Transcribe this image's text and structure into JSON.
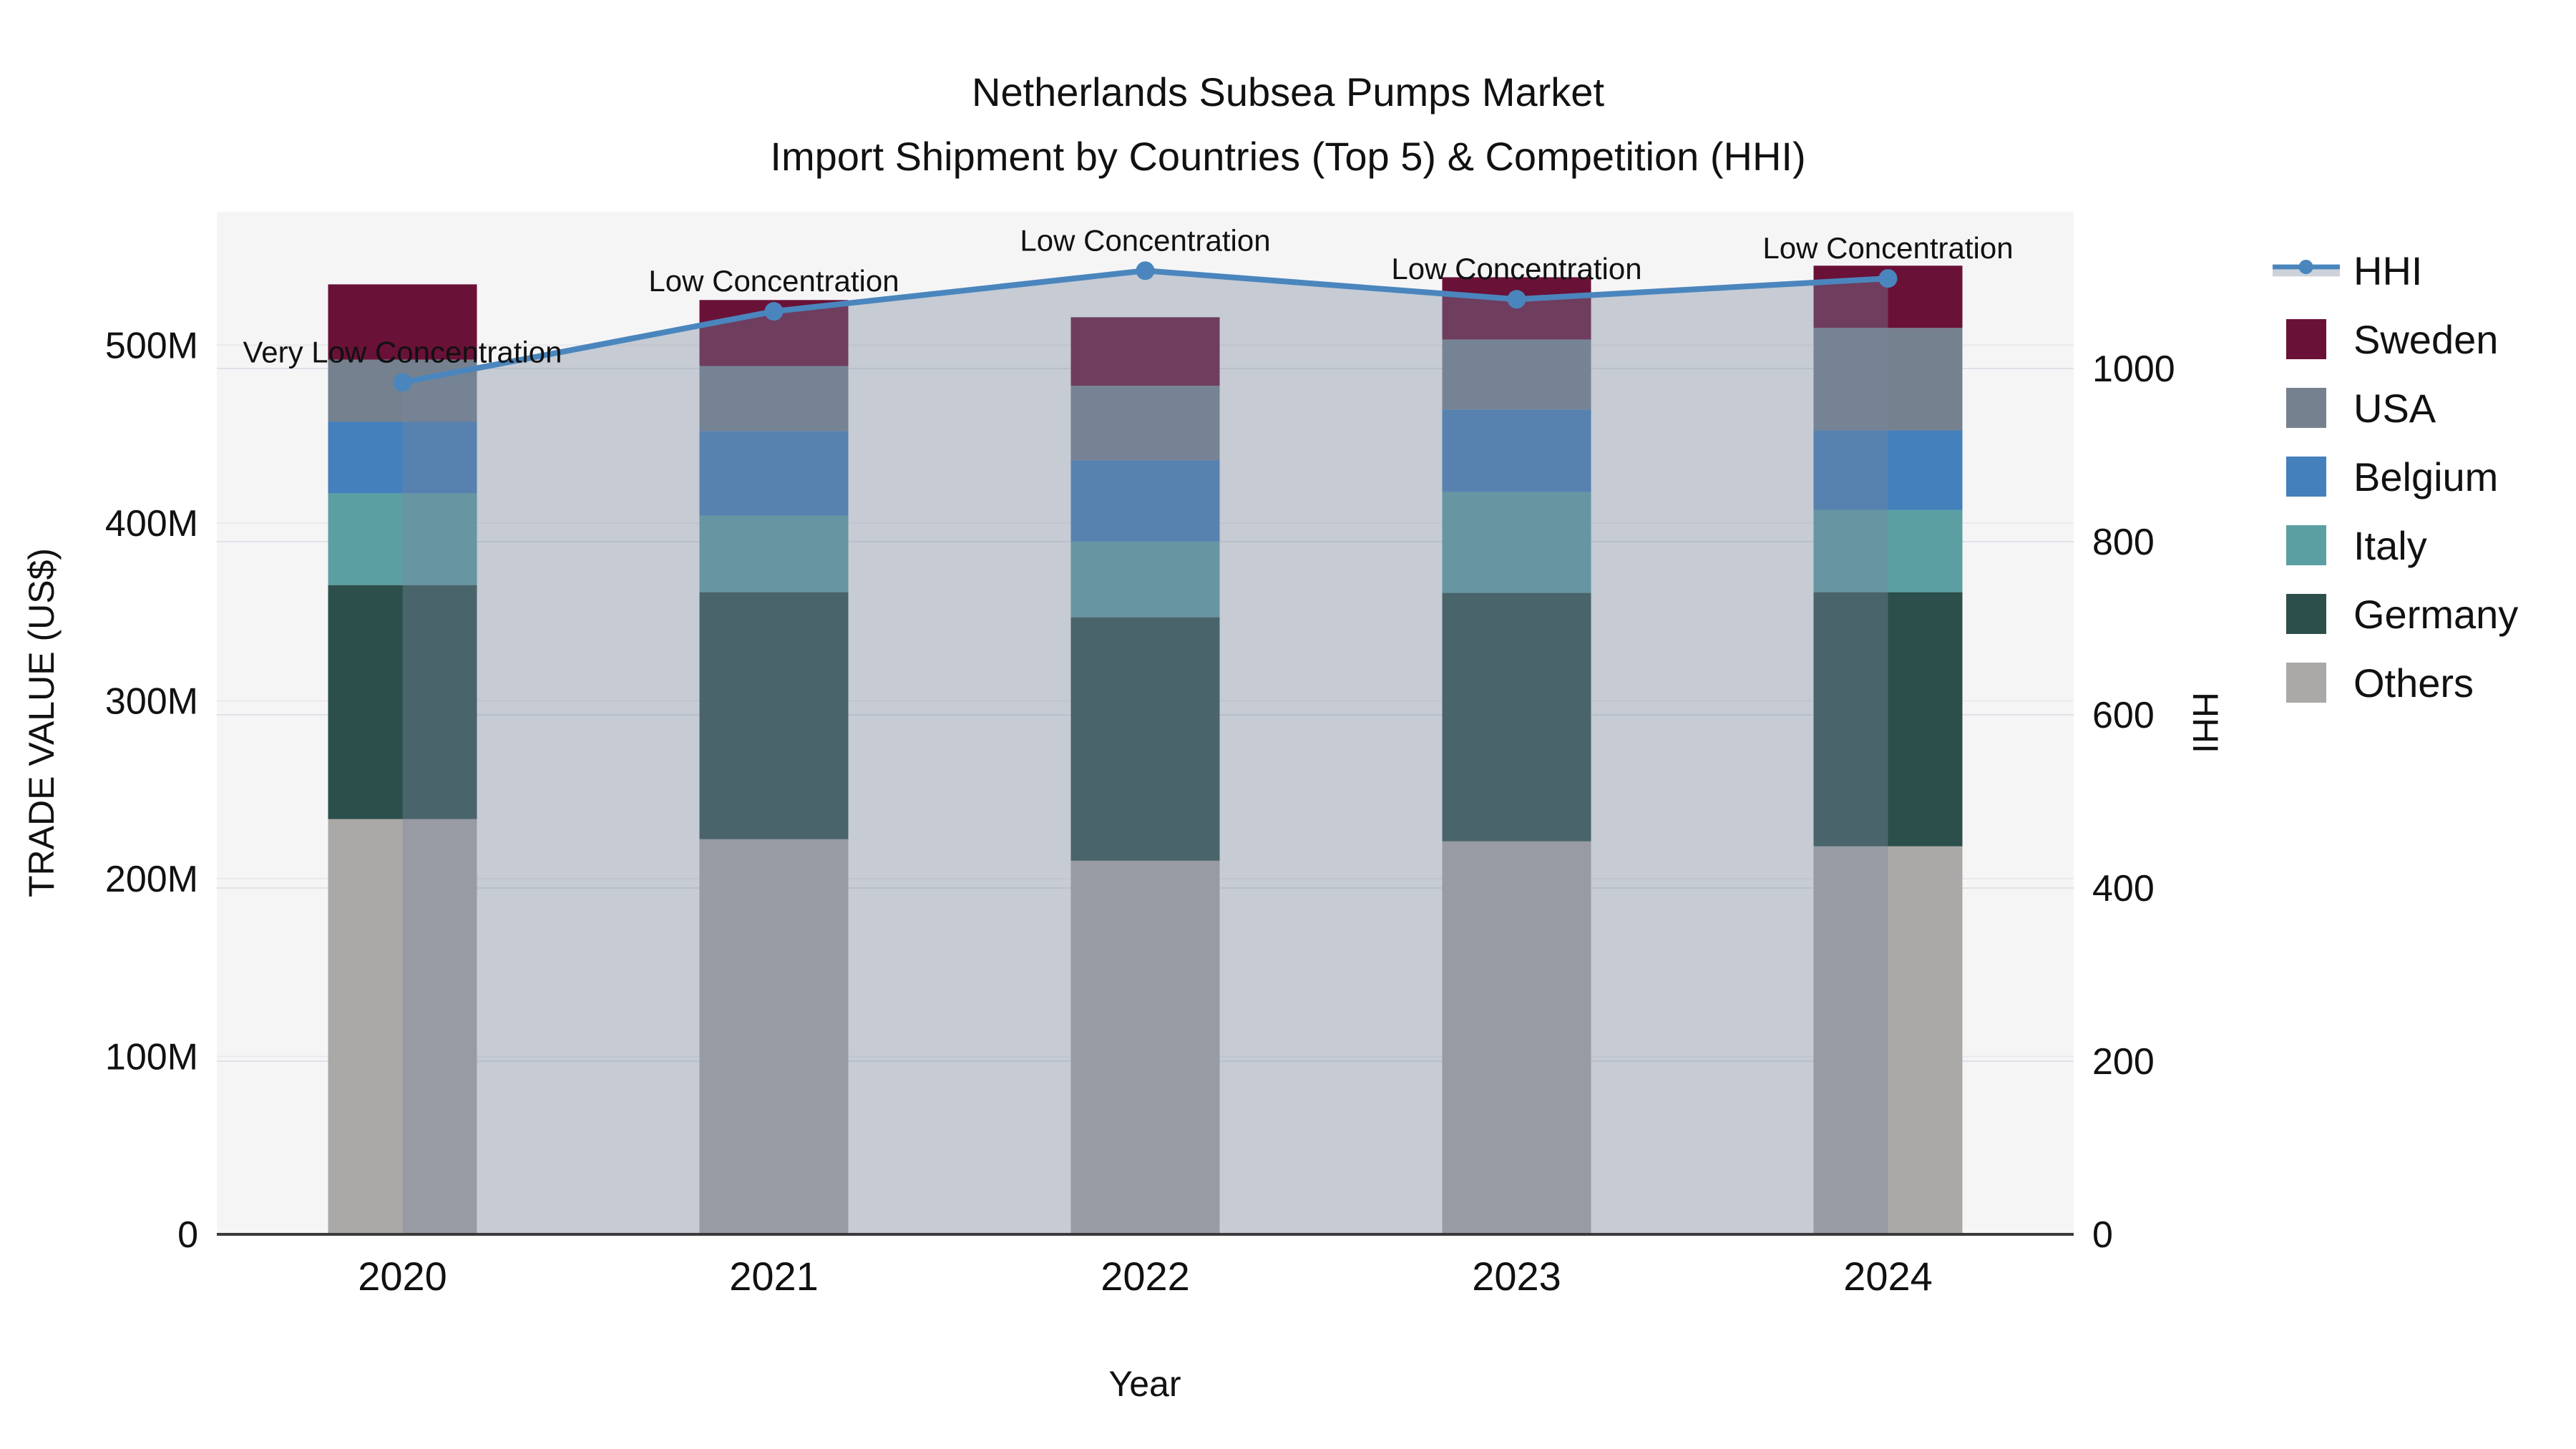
{
  "title": {
    "line1": "Netherlands Subsea Pumps Market",
    "line2": "Import Shipment by Countries (Top 5) & Competition (HHI)"
  },
  "legend": {
    "items": [
      {
        "label": "HHI",
        "type": "line"
      },
      {
        "label": "Sweden",
        "type": "square"
      },
      {
        "label": "USA",
        "type": "square"
      },
      {
        "label": "Belgium",
        "type": "square"
      },
      {
        "label": "Italy",
        "type": "square"
      },
      {
        "label": "Germany",
        "type": "square"
      },
      {
        "label": "Others",
        "type": "square"
      }
    ]
  },
  "colors": {
    "Sweden": "#6A1137",
    "USA": "#75818F",
    "Belgium": "#4380BC",
    "Italy": "#5C9FA3",
    "Germany": "#2C4F4B",
    "Others": "#ABA9A7",
    "hhi_line": "#4A86BD",
    "hhi_fill": "rgba(122,134,158,0.38)",
    "plot_bg": "#F5F5F6",
    "grid_left": "#EAEAEE",
    "grid_right": "#DFE2E8",
    "axis_line": "#3A3A3A",
    "text": "#111111"
  },
  "chart_data": {
    "type": "bar+line",
    "categories": [
      "2020",
      "2021",
      "2022",
      "2023",
      "2024"
    ],
    "bar_value_unit": "million US$",
    "stack_order": [
      "Others",
      "Germany",
      "Italy",
      "Belgium",
      "USA",
      "Sweden"
    ],
    "series": [
      {
        "name": "Sweden",
        "values": [
          42.3,
          37.1,
          38.5,
          35.0,
          35.0
        ]
      },
      {
        "name": "USA",
        "values": [
          35.0,
          36.6,
          42.0,
          39.4,
          57.6
        ]
      },
      {
        "name": "Belgium",
        "values": [
          40.2,
          47.5,
          45.5,
          46.3,
          44.7
        ]
      },
      {
        "name": "Italy",
        "values": [
          51.6,
          43.1,
          42.7,
          56.8,
          46.3
        ]
      },
      {
        "name": "Germany",
        "values": [
          131.6,
          138.9,
          136.9,
          139.7,
          142.9
        ]
      },
      {
        "name": "Others",
        "values": [
          233.5,
          222.2,
          210.1,
          221.0,
          218.2
        ]
      }
    ],
    "totals": [
      534.2,
      525.4,
      515.7,
      538.2,
      544.7
    ],
    "line_series": {
      "name": "HHI",
      "values": [
        984,
        1066,
        1113,
        1080,
        1104
      ],
      "axis": "right"
    },
    "annotations": [
      {
        "category": "2020",
        "text": "Very Low Concentration"
      },
      {
        "category": "2021",
        "text": "Low Concentration"
      },
      {
        "category": "2022",
        "text": "Low Concentration"
      },
      {
        "category": "2023",
        "text": "Low Concentration"
      },
      {
        "category": "2024",
        "text": "Low Concentration"
      }
    ],
    "left_axis": {
      "title": "TRADE VALUE (US$)",
      "max": 575,
      "ticks": [
        {
          "v": 0,
          "label": "0"
        },
        {
          "v": 100,
          "label": "100M"
        },
        {
          "v": 200,
          "label": "200M"
        },
        {
          "v": 300,
          "label": "300M"
        },
        {
          "v": 400,
          "label": "400M"
        },
        {
          "v": 500,
          "label": "500M"
        }
      ]
    },
    "right_axis": {
      "title": "HHI",
      "max": 1181,
      "ticks": [
        {
          "v": 0,
          "label": "0"
        },
        {
          "v": 200,
          "label": "200"
        },
        {
          "v": 400,
          "label": "400"
        },
        {
          "v": 600,
          "label": "600"
        },
        {
          "v": 800,
          "label": "800"
        },
        {
          "v": 1000,
          "label": "1000"
        }
      ]
    },
    "x_axis": {
      "title": "Year"
    },
    "grid": true,
    "legend_position": "right"
  }
}
